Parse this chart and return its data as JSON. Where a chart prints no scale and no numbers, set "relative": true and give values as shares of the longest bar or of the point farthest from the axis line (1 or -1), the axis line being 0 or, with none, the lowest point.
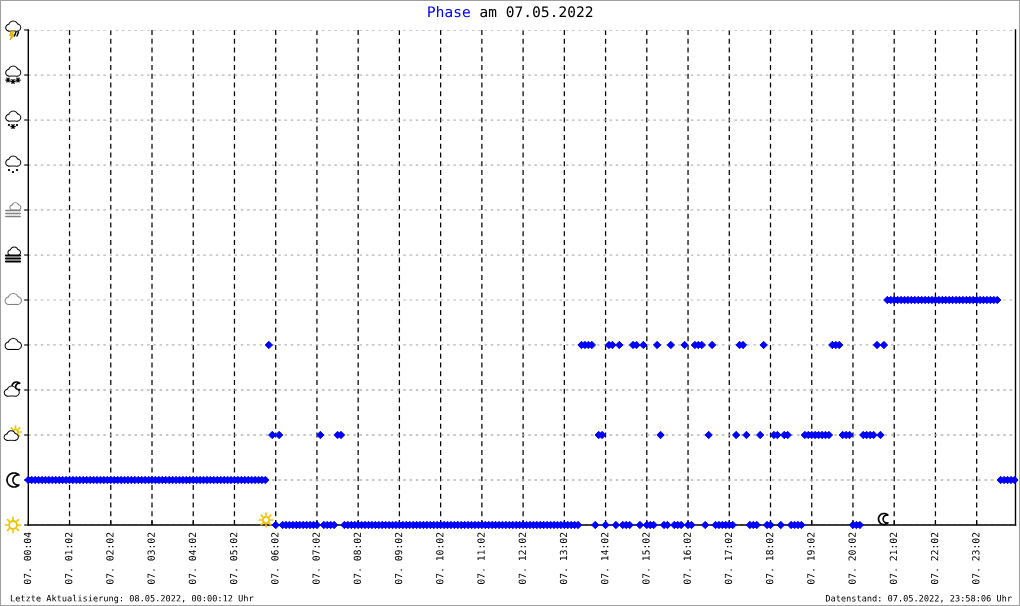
{
  "chart_data": {
    "type": "scatter",
    "title": "am 07.05.2022",
    "relative": true,
    "categories": [
      "07. 00:04",
      null,
      null,
      null,
      null,
      null,
      null,
      null,
      null,
      null,
      null,
      null,
      "07. 01:02",
      null,
      null,
      null,
      null,
      null,
      null,
      null,
      null,
      null,
      null,
      null,
      "07. 02:02",
      null,
      null,
      null,
      null,
      null,
      null,
      null,
      null,
      null,
      null,
      null,
      "07. 03:02",
      null,
      null,
      null,
      null,
      null,
      null,
      null,
      null,
      null,
      null,
      null,
      "07. 04:02",
      null,
      null,
      null,
      null,
      null,
      null,
      null,
      null,
      null,
      null,
      null,
      "07. 05:02",
      null,
      null,
      null,
      null,
      null,
      null,
      null,
      null,
      null,
      null,
      null,
      "07. 06:02",
      null,
      null,
      null,
      null,
      null,
      null,
      null,
      null,
      null,
      null,
      null,
      "07. 07:02",
      null,
      null,
      null,
      null,
      null,
      null,
      null,
      null,
      null,
      null,
      null,
      "07. 08:02",
      null,
      null,
      null,
      null,
      null,
      null,
      null,
      null,
      null,
      null,
      null,
      "07. 09:02",
      null,
      null,
      null,
      null,
      null,
      null,
      null,
      null,
      null,
      null,
      null,
      "07. 10:02",
      null,
      null,
      null,
      null,
      null,
      null,
      null,
      null,
      null,
      null,
      null,
      "07. 11:02",
      null,
      null,
      null,
      null,
      null,
      null,
      null,
      null,
      null,
      null,
      null,
      "07. 12:02",
      null,
      null,
      null,
      null,
      null,
      null,
      null,
      null,
      null,
      null,
      null,
      "07. 13:02",
      null,
      null,
      null,
      null,
      null,
      null,
      null,
      null,
      null,
      null,
      null,
      "07. 14:02",
      null,
      null,
      null,
      null,
      null,
      null,
      null,
      null,
      null,
      null,
      null,
      "07. 15:02",
      null,
      null,
      null,
      null,
      null,
      null,
      null,
      null,
      null,
      null,
      null,
      "07. 16:02",
      null,
      null,
      null,
      null,
      null,
      null,
      null,
      null,
      null,
      null,
      null,
      "07. 17:02",
      null,
      null,
      null,
      null,
      null,
      null,
      null,
      null,
      null,
      null,
      null,
      "07. 18:02",
      null,
      null,
      null,
      null,
      null,
      null,
      null,
      null,
      null,
      null,
      null,
      "07. 19:02",
      null,
      null,
      null,
      null,
      null,
      null,
      null,
      null,
      null,
      null,
      null,
      "07. 20:02",
      null,
      null,
      null,
      null,
      null,
      null,
      null,
      null,
      null,
      null,
      null,
      "07. 21:02",
      null,
      null,
      null,
      null,
      null,
      null,
      null,
      null,
      null,
      null,
      null,
      "07. 22:02",
      null,
      null,
      null,
      null,
      null,
      null,
      null,
      null,
      null,
      null,
      null,
      "07. 23:02",
      null,
      null,
      null,
      null,
      null,
      null,
      null,
      null,
      null,
      null,
      null
    ],
    "series": [
      {
        "name": "Phase",
        "color": "#0000ff",
        "values": [
          0.2,
          0.2,
          0.2,
          0.2,
          0.2,
          0.2,
          0.2,
          0.2,
          0.2,
          0.2,
          0.2,
          0.2,
          0.2,
          0.2,
          0.2,
          0.2,
          0.2,
          0.2,
          0.2,
          0.2,
          0.2,
          0.2,
          0.2,
          0.2,
          0.2,
          0.2,
          0.2,
          0.2,
          0.2,
          0.2,
          0.2,
          0.2,
          0.2,
          0.2,
          0.2,
          0.2,
          0.2,
          0.2,
          0.2,
          0.2,
          0.2,
          0.2,
          0.2,
          0.2,
          0.2,
          0.2,
          0.2,
          0.2,
          0.2,
          0.2,
          0.2,
          0.2,
          0.2,
          0.2,
          0.2,
          0.2,
          0.2,
          0.2,
          0.2,
          0.2,
          0.2,
          0.2,
          0.2,
          0.2,
          0.2,
          0.2,
          0.2,
          0.2,
          0.2,
          0.2,
          0.8,
          0.4,
          0,
          0.4,
          0,
          0,
          0,
          0,
          0,
          0,
          0,
          0,
          0,
          0,
          0,
          0.4,
          0,
          0,
          0,
          0,
          0.4,
          0.4,
          0,
          0,
          0,
          0,
          0,
          0,
          0,
          0,
          0,
          0,
          0,
          0,
          0,
          0,
          0,
          0,
          0,
          0,
          0,
          0,
          0,
          0,
          0,
          0,
          0,
          0,
          0,
          0,
          0,
          0,
          0,
          0,
          0,
          0,
          0,
          0,
          0,
          0,
          0,
          0,
          0,
          0,
          0,
          0,
          0,
          0,
          0,
          0,
          0,
          0,
          0,
          0,
          0,
          0,
          0,
          0,
          0,
          0,
          0,
          0,
          0,
          0,
          0,
          0,
          0,
          0,
          0,
          0,
          0,
          0.8,
          0.8,
          0.8,
          0.8,
          0,
          0.4,
          0.4,
          0,
          0.8,
          0.8,
          0,
          0.8,
          0,
          0,
          0,
          0.8,
          0.8,
          0,
          0.8,
          0,
          0,
          0,
          0.8,
          0.4,
          0,
          0,
          0.8,
          0,
          0,
          0,
          0.8,
          0,
          0,
          0.8,
          0.8,
          0.8,
          0,
          0.4,
          0.8,
          0,
          0,
          0,
          0,
          0,
          0,
          0.4,
          0.8,
          0.8,
          0.4,
          0,
          0,
          0,
          0.4,
          0.8,
          0,
          0,
          0.4,
          0.4,
          0,
          0.4,
          0.4,
          0,
          0,
          0,
          0,
          0.4,
          0.4,
          0.4,
          0.4,
          0.4,
          0.4,
          0.4,
          0.4,
          0.8,
          0.8,
          0.8,
          0.4,
          0.4,
          0.4,
          0,
          0,
          0,
          0.4,
          0.4,
          0.4,
          0.4,
          0.8,
          0.4,
          0.8,
          1,
          1,
          1,
          1,
          1,
          1,
          1,
          1,
          1,
          1,
          1,
          1,
          1,
          1,
          1,
          1,
          1,
          1,
          1,
          1,
          1,
          1,
          1,
          1,
          1,
          1,
          1,
          1,
          1,
          1,
          1,
          1,
          1,
          0.2,
          0.2,
          0.2,
          0.2,
          0.2
        ]
      }
    ],
    "grid": true,
    "marker": "diamond",
    "annotations": [
      "Letzte Aktualisierung: 08.05.2022, 00:00:12 Uhr",
      "Datenstand: 07.05.2022, 23:58:06 Uhr"
    ]
  }
}
